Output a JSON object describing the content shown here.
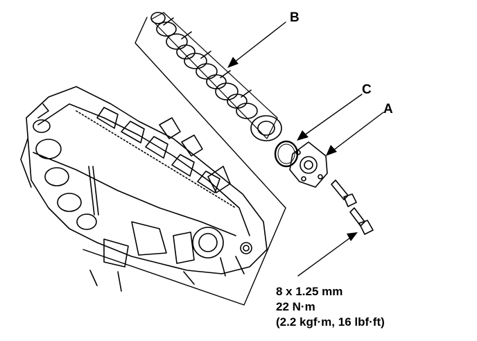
{
  "labels": {
    "a": "A",
    "b": "B",
    "c": "C"
  },
  "torque_spec": {
    "bolt_size": "8 x 1.25 mm",
    "torque_nm": "22 N·m",
    "torque_alt": "(2.2 kgf·m, 16 lbf·ft)"
  },
  "colors": {
    "ink": "#000000",
    "paper": "#ffffff"
  },
  "icons": [
    "camshaft-icon",
    "seal-ring-icon",
    "end-cap-icon",
    "bolt-icon",
    "cylinder-head-icon"
  ]
}
